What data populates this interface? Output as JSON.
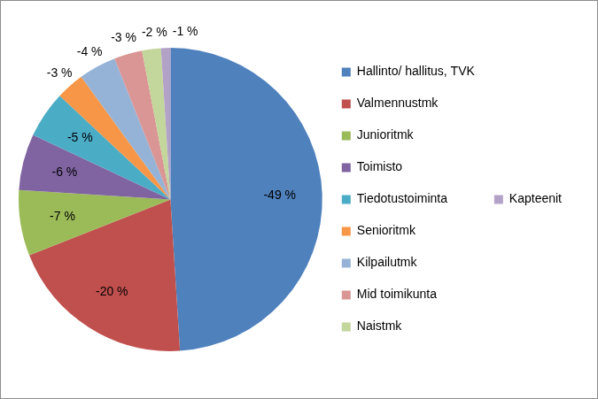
{
  "chart_data": {
    "type": "pie",
    "categories": [
      "Hallinto/ hallitus, TVK",
      "Valmennustmk",
      "Junioritmk",
      "Toimisto",
      "Tiedotustoiminta",
      "Senioritmk",
      "Kilpailutmk",
      "Mid toimikunta",
      "Naistmk",
      "Kapteenit"
    ],
    "values": [
      -49,
      -20,
      -7,
      -6,
      -5,
      -3,
      -4,
      -3,
      -2,
      -1
    ],
    "value_labels": [
      "-49 %",
      "-20 %",
      "-7 %",
      "-6 %",
      "-5 %",
      "-3 %",
      "-4 %",
      "-3 %",
      "-2 %",
      "-1 %"
    ],
    "colors": [
      "#4f81bd",
      "#c0504d",
      "#9bbb59",
      "#8064a2",
      "#4bacc6",
      "#f79646",
      "#95b3d7",
      "#d99694",
      "#c3d69b",
      "#b3a2c7"
    ],
    "legend": "right",
    "data_labels": true
  }
}
